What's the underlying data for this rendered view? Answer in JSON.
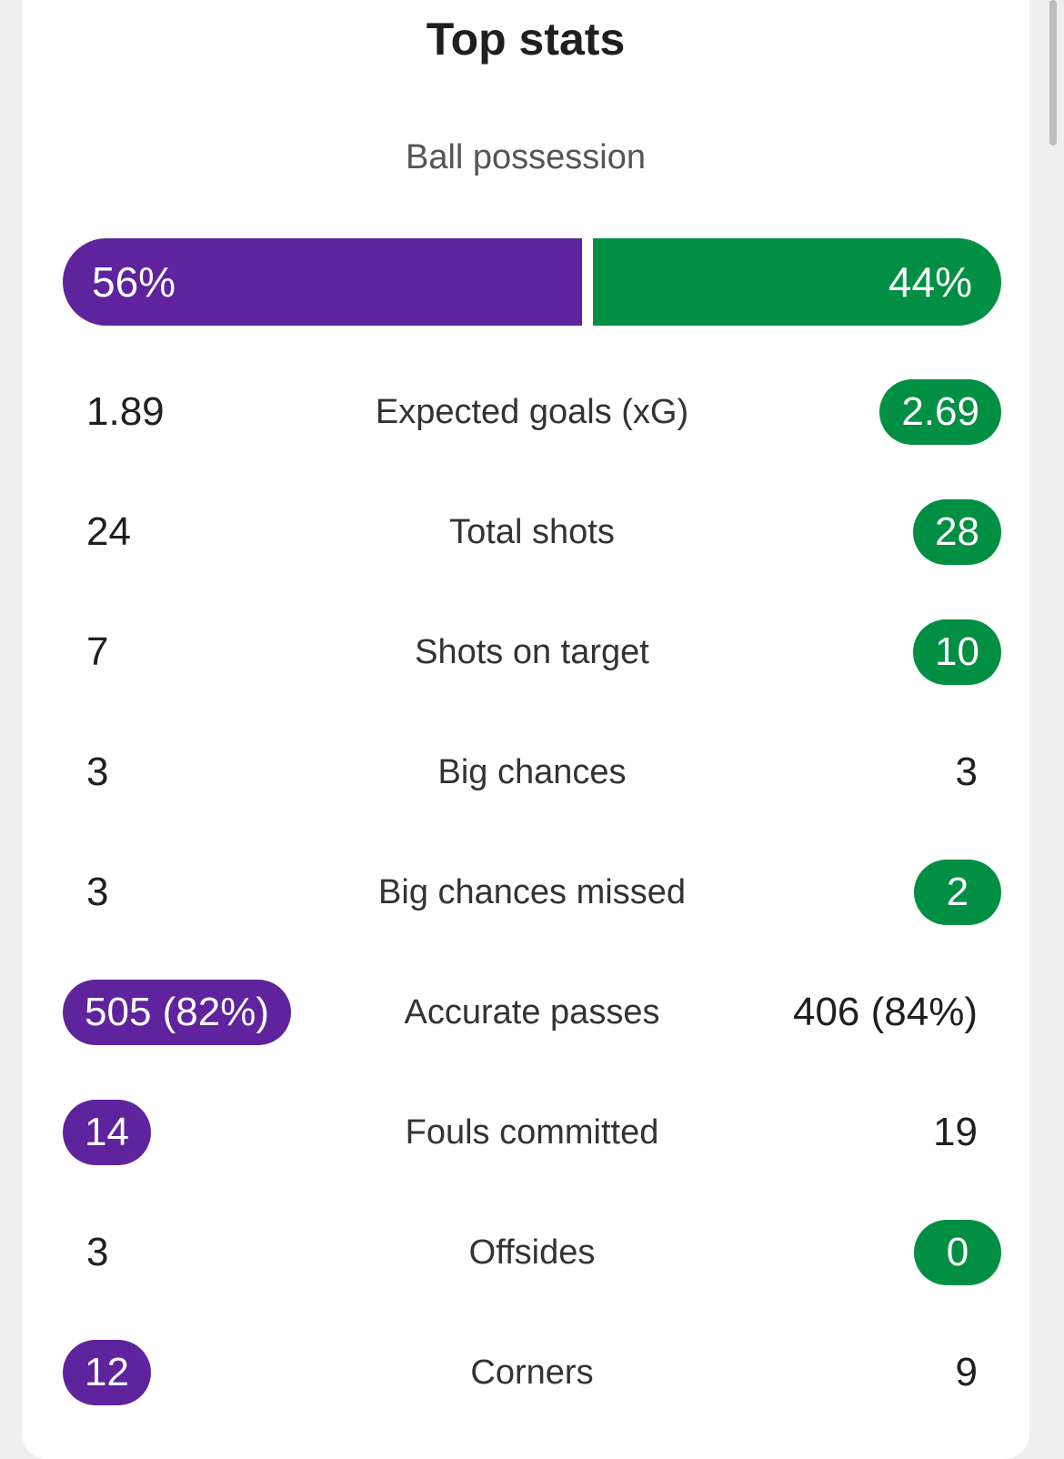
{
  "title": "Top stats",
  "colors": {
    "home": "#5e239d",
    "away": "#008f43"
  },
  "possession": {
    "label": "Ball possession",
    "home": "56%",
    "away": "44%",
    "home_fraction": 0.56,
    "away_fraction": 0.44
  },
  "stats": [
    {
      "label": "Expected goals (xG)",
      "home": "1.89",
      "away": "2.69",
      "highlight": "away"
    },
    {
      "label": "Total shots",
      "home": "24",
      "away": "28",
      "highlight": "away"
    },
    {
      "label": "Shots on target",
      "home": "7",
      "away": "10",
      "highlight": "away"
    },
    {
      "label": "Big chances",
      "home": "3",
      "away": "3",
      "highlight": "none"
    },
    {
      "label": "Big chances missed",
      "home": "3",
      "away": "2",
      "highlight": "away"
    },
    {
      "label": "Accurate passes",
      "home": "505 (82%)",
      "away": "406 (84%)",
      "highlight": "home"
    },
    {
      "label": "Fouls committed",
      "home": "14",
      "away": "19",
      "highlight": "home"
    },
    {
      "label": "Offsides",
      "home": "3",
      "away": "0",
      "highlight": "away"
    },
    {
      "label": "Corners",
      "home": "12",
      "away": "9",
      "highlight": "home"
    }
  ]
}
